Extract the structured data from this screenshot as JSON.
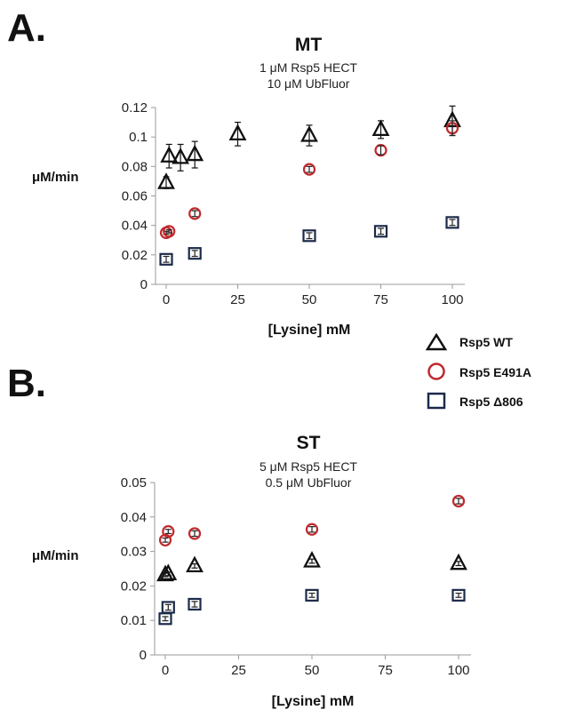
{
  "panel_labels": [
    "A.",
    "B."
  ],
  "legend": {
    "entries": [
      {
        "label": "Rsp5 WT",
        "marker": "triangle",
        "color": "#111111"
      },
      {
        "label": "Rsp5 E491A",
        "marker": "circle",
        "color": "#c0282d"
      },
      {
        "label": "Rsp5 Δ806",
        "marker": "square",
        "color": "#1c2a4a"
      }
    ]
  },
  "chart_data": [
    {
      "type": "scatter",
      "title": "MT",
      "subtitle_lines": [
        "1 μM  Rsp5 HECT",
        "10 μM UbFluor"
      ],
      "xlabel": "[Lysine] mM",
      "ylabel": "μM/min",
      "xlim": [
        0,
        100
      ],
      "ylim": [
        0,
        0.12
      ],
      "xticks": [
        0,
        25,
        50,
        75,
        100
      ],
      "yticks": [
        0,
        0.02,
        0.04,
        0.06,
        0.08,
        0.1,
        0.12
      ],
      "ytick_labels": [
        "0",
        "0.02",
        "0.04",
        "0.06",
        "0.08",
        "0.1",
        "0.12"
      ],
      "grid": false,
      "error_bars": true,
      "series": [
        {
          "name": "Rsp5 WT",
          "marker": "triangle",
          "color": "#111111",
          "points": [
            {
              "x": 0,
              "y": 0.069,
              "err": 0.004
            },
            {
              "x": 1,
              "y": 0.087,
              "err": 0.008
            },
            {
              "x": 5,
              "y": 0.086,
              "err": 0.009
            },
            {
              "x": 10,
              "y": 0.088,
              "err": 0.009
            },
            {
              "x": 25,
              "y": 0.102,
              "err": 0.008
            },
            {
              "x": 50,
              "y": 0.101,
              "err": 0.007
            },
            {
              "x": 75,
              "y": 0.105,
              "err": 0.006
            },
            {
              "x": 100,
              "y": 0.111,
              "err": 0.01
            }
          ]
        },
        {
          "name": "Rsp5 E491A",
          "marker": "circle",
          "color": "#c0282d",
          "points": [
            {
              "x": 0,
              "y": 0.035,
              "err": 0.001
            },
            {
              "x": 1,
              "y": 0.036,
              "err": 0.001
            },
            {
              "x": 10,
              "y": 0.048,
              "err": 0.002
            },
            {
              "x": 50,
              "y": 0.078,
              "err": 0.002
            },
            {
              "x": 75,
              "y": 0.091,
              "err": 0.003
            },
            {
              "x": 100,
              "y": 0.106,
              "err": 0.005
            }
          ]
        },
        {
          "name": "Rsp5 Δ806",
          "marker": "square",
          "color": "#1c2a4a",
          "points": [
            {
              "x": 0,
              "y": 0.017,
              "err": 0.002
            },
            {
              "x": 10,
              "y": 0.021,
              "err": 0.002
            },
            {
              "x": 50,
              "y": 0.033,
              "err": 0.002
            },
            {
              "x": 75,
              "y": 0.036,
              "err": 0.002
            },
            {
              "x": 100,
              "y": 0.042,
              "err": 0.002
            }
          ]
        }
      ]
    },
    {
      "type": "scatter",
      "title": "ST",
      "subtitle_lines": [
        "5 μM  Rsp5 HECT",
        "0.5 μM UbFluor"
      ],
      "xlabel": "[Lysine] mM",
      "ylabel": "μM/min",
      "xlim": [
        0,
        100
      ],
      "ylim": [
        0,
        0.05
      ],
      "xticks": [
        0,
        25,
        50,
        75,
        100
      ],
      "yticks": [
        0,
        0.01,
        0.02,
        0.03,
        0.04,
        0.05
      ],
      "ytick_labels": [
        "0",
        "0.01",
        "0.02",
        "0.03",
        "0.04",
        "0.05"
      ],
      "grid": false,
      "error_bars": true,
      "series": [
        {
          "name": "Rsp5 WT",
          "marker": "triangle",
          "color": "#111111",
          "points": [
            {
              "x": 0,
              "y": 0.0232,
              "err": 0.0005
            },
            {
              "x": 1,
              "y": 0.0235,
              "err": 0.0005
            },
            {
              "x": 10,
              "y": 0.0258,
              "err": 0.0006
            },
            {
              "x": 50,
              "y": 0.0272,
              "err": 0.0006
            },
            {
              "x": 100,
              "y": 0.0265,
              "err": 0.0006
            }
          ]
        },
        {
          "name": "Rsp5 E491A",
          "marker": "circle",
          "color": "#c0282d",
          "points": [
            {
              "x": 0,
              "y": 0.0333,
              "err": 0.0006
            },
            {
              "x": 1,
              "y": 0.0358,
              "err": 0.0006
            },
            {
              "x": 10,
              "y": 0.0352,
              "err": 0.0008
            },
            {
              "x": 50,
              "y": 0.0364,
              "err": 0.0008
            },
            {
              "x": 100,
              "y": 0.0446,
              "err": 0.0008
            }
          ]
        },
        {
          "name": "Rsp5 Δ806",
          "marker": "square",
          "color": "#1c2a4a",
          "points": [
            {
              "x": 0,
              "y": 0.0105,
              "err": 0.0006
            },
            {
              "x": 1,
              "y": 0.0138,
              "err": 0.0008
            },
            {
              "x": 10,
              "y": 0.0147,
              "err": 0.0008
            },
            {
              "x": 50,
              "y": 0.0173,
              "err": 0.0006
            },
            {
              "x": 100,
              "y": 0.0173,
              "err": 0.0006
            }
          ]
        }
      ]
    }
  ]
}
